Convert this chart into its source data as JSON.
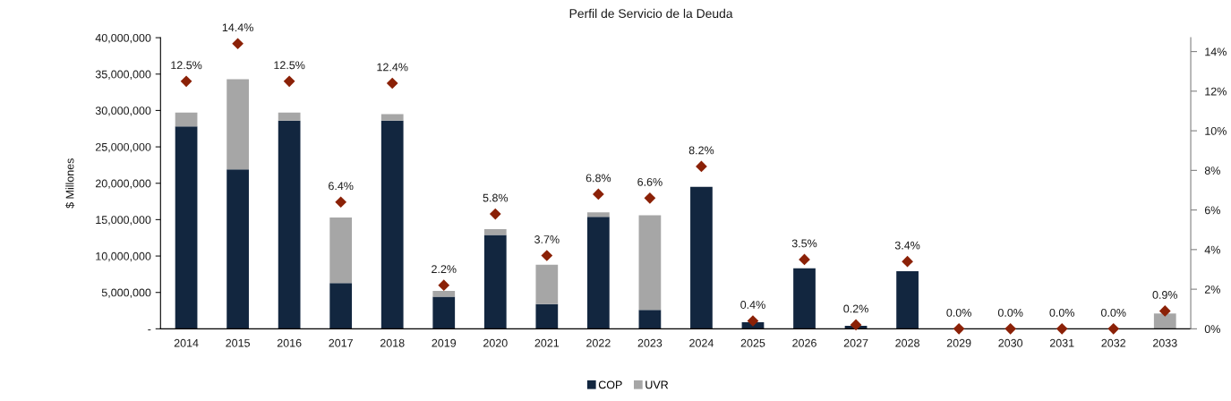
{
  "chart_data": {
    "type": "bar",
    "title": "Perfil de Servicio de la Deuda",
    "ylabel": "$ Millones",
    "categories": [
      "2014",
      "2015",
      "2016",
      "2017",
      "2018",
      "2019",
      "2020",
      "2021",
      "2022",
      "2023",
      "2024",
      "2025",
      "2026",
      "2027",
      "2028",
      "2029",
      "2030",
      "2031",
      "2032",
      "2033"
    ],
    "stacked": true,
    "series": [
      {
        "name": "COP",
        "color": "#12263f",
        "values": [
          27800000,
          21900000,
          28600000,
          6300000,
          28600000,
          4400000,
          12900000,
          3400000,
          15400000,
          2600000,
          19500000,
          900000,
          8300000,
          400000,
          7900000,
          0,
          0,
          0,
          0,
          0
        ]
      },
      {
        "name": "UVR",
        "color": "#a6a6a6",
        "values": [
          1900000,
          12400000,
          1100000,
          9000000,
          900000,
          800000,
          800000,
          5400000,
          600000,
          13000000,
          0,
          0,
          0,
          0,
          0,
          0,
          0,
          0,
          0,
          2100000
        ]
      },
      {
        "type": "scatter",
        "axis": "y2",
        "color": "#8b2107",
        "marker": "diamond",
        "values": [
          12.5,
          14.4,
          12.5,
          6.4,
          12.4,
          2.2,
          5.8,
          3.7,
          6.8,
          6.6,
          8.2,
          0.4,
          3.5,
          0.2,
          3.4,
          0,
          0,
          0,
          0,
          0.9
        ],
        "value_labels": [
          "12.5%",
          "14.4%",
          "12.5%",
          "6.4%",
          "12.4%",
          "2.2%",
          "5.8%",
          "3.7%",
          "6.8%",
          "6.6%",
          "8.2%",
          "0.4%",
          "3.5%",
          "0.2%",
          "3.4%",
          "0.0%",
          "0.0%",
          "0.0%",
          "0.0%",
          "0.9%"
        ]
      }
    ],
    "ylim": [
      0,
      40000000
    ],
    "yticks": [
      {
        "value": 0,
        "label": "-"
      },
      {
        "value": 5000000,
        "label": "5,000,000"
      },
      {
        "value": 10000000,
        "label": "10,000,000"
      },
      {
        "value": 15000000,
        "label": "15,000,000"
      },
      {
        "value": 20000000,
        "label": "20,000,000"
      },
      {
        "value": 25000000,
        "label": "25,000,000"
      },
      {
        "value": 30000000,
        "label": "30,000,000"
      },
      {
        "value": 35000000,
        "label": "35,000,000"
      },
      {
        "value": 40000000,
        "label": "40,000,000"
      }
    ],
    "y2lim": [
      0,
      14.7
    ],
    "y2ticks": [
      {
        "value": 0,
        "label": "0%"
      },
      {
        "value": 2,
        "label": "2%"
      },
      {
        "value": 4,
        "label": "4%"
      },
      {
        "value": 6,
        "label": "6%"
      },
      {
        "value": 8,
        "label": "8%"
      },
      {
        "value": 10,
        "label": "10%"
      },
      {
        "value": 12,
        "label": "12%"
      },
      {
        "value": 14,
        "label": "14%"
      }
    ],
    "legend": "bottom"
  }
}
